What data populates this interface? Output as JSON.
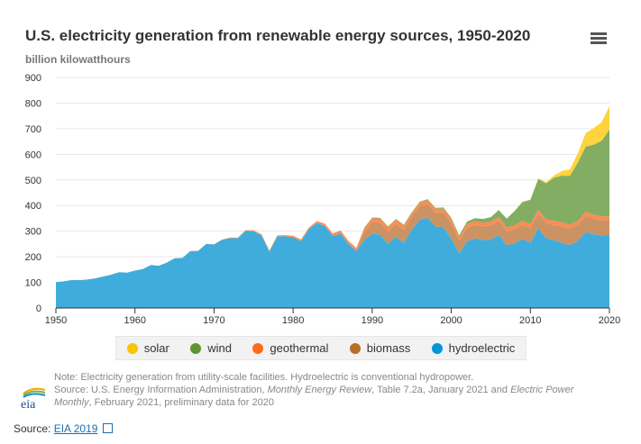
{
  "header": {
    "title": "U.S. electricity generation from renewable energy sources, 1950-2020",
    "subtitle": "billion kilowatthours"
  },
  "menu_icon": "hamburger-menu-icon",
  "chart_data": {
    "type": "area",
    "stacked": true,
    "title": "U.S. electricity generation from renewable energy sources, 1950-2020",
    "ylabel": "billion kilowatthours",
    "xlim": [
      1950,
      2020
    ],
    "ylim": [
      0,
      900
    ],
    "yticks": [
      0,
      100,
      200,
      300,
      400,
      500,
      600,
      700,
      800,
      900
    ],
    "xticks": [
      1950,
      1960,
      1970,
      1980,
      1990,
      2000,
      2010,
      2020
    ],
    "grid": true,
    "legend_position": "bottom",
    "x_start": 1950,
    "series": [
      {
        "name": "hydroelectric",
        "fill": "#40acdc",
        "color": "#0096d7",
        "values": [
          101,
          104,
          109,
          109,
          111,
          116,
          123,
          130,
          140,
          138,
          146,
          152,
          168,
          165,
          177,
          194,
          195,
          222,
          223,
          250,
          248,
          266,
          273,
          272,
          301,
          300,
          284,
          220,
          280,
          280,
          276,
          261,
          309,
          332,
          321,
          281,
          291,
          250,
          223,
          265,
          290,
          286,
          250,
          278,
          254,
          306,
          344,
          353,
          318,
          316,
          271,
          214,
          260,
          272,
          265,
          267,
          286,
          245,
          252,
          270,
          255,
          312,
          272,
          265,
          255,
          245,
          262,
          297,
          288,
          284,
          285
        ]
      },
      {
        "name": "biomass",
        "fill": "#cb9363",
        "color": "#b86e2a",
        "values": [
          0,
          0,
          0,
          0,
          0,
          0,
          0,
          0,
          0,
          0,
          0.1,
          0.1,
          0.1,
          0.1,
          0.1,
          0.1,
          0.1,
          0.1,
          0.1,
          0.1,
          0.5,
          0.5,
          0.5,
          0.5,
          0.5,
          0.5,
          0.5,
          0.5,
          0.5,
          0.5,
          1,
          1,
          1,
          1,
          1,
          1,
          1,
          1,
          1,
          32,
          45,
          47,
          49,
          50,
          52,
          51,
          53,
          54,
          55,
          57,
          61,
          49,
          53,
          53,
          54,
          55,
          55,
          55,
          56,
          55,
          57,
          57,
          58,
          60,
          64,
          64,
          63,
          63,
          61,
          58,
          56
        ]
      },
      {
        "name": "geothermal",
        "fill": "#fb8c55",
        "color": "#ff6b1a",
        "values": [
          0,
          0,
          0,
          0,
          0,
          0,
          0,
          0,
          0,
          0,
          0,
          0,
          0,
          0.2,
          0.2,
          0.2,
          0.3,
          0.3,
          0.5,
          0.6,
          0.5,
          0.5,
          1.5,
          2,
          2.5,
          3,
          3.6,
          3.6,
          3,
          3.9,
          5,
          5.7,
          4.8,
          6.1,
          7.7,
          9.3,
          10.3,
          10.8,
          10.3,
          14.6,
          15.4,
          16,
          16.1,
          16.8,
          15.5,
          13.4,
          14.3,
          14.7,
          14.8,
          14.8,
          14.1,
          13.7,
          14.5,
          14.4,
          14.8,
          14.7,
          14.6,
          14.6,
          14.8,
          15,
          15.2,
          15.3,
          15.6,
          15.8,
          15.9,
          15.9,
          15.8,
          15.9,
          15.9,
          15.5,
          17
        ]
      },
      {
        "name": "wind",
        "fill": "#82ad62",
        "color": "#5e9732",
        "values": [
          0,
          0,
          0,
          0,
          0,
          0,
          0,
          0,
          0,
          0,
          0,
          0,
          0,
          0,
          0,
          0,
          0,
          0,
          0,
          0,
          0,
          0,
          0,
          0,
          0,
          0,
          0,
          0,
          0,
          0,
          0,
          0,
          0,
          0,
          0,
          0,
          0,
          0,
          0,
          2,
          3,
          3,
          3,
          3,
          3.4,
          3.2,
          3.2,
          3.3,
          3,
          4.5,
          5.6,
          6.7,
          10,
          11,
          14,
          18,
          27,
          34,
          55,
          74,
          95,
          120,
          141,
          168,
          182,
          191,
          227,
          254,
          273,
          295,
          338
        ]
      },
      {
        "name": "solar",
        "fill": "#fdd43c",
        "color": "#f8c500",
        "values": [
          0,
          0,
          0,
          0,
          0,
          0,
          0,
          0,
          0,
          0,
          0,
          0,
          0,
          0,
          0,
          0,
          0,
          0,
          0,
          0,
          0,
          0,
          0,
          0,
          0,
          0,
          0,
          0,
          0,
          0,
          0,
          0,
          0,
          0,
          0,
          0,
          0,
          0,
          0,
          0,
          0.4,
          0.4,
          0.4,
          0.4,
          0.4,
          0.4,
          0.4,
          0.4,
          0.4,
          0.4,
          0.4,
          0.4,
          0.4,
          0.4,
          0.4,
          0.4,
          0.4,
          0.6,
          0.9,
          0.9,
          1.2,
          1.8,
          4.3,
          9,
          18,
          25,
          36,
          53,
          64,
          72,
          91
        ]
      }
    ]
  },
  "legend": [
    {
      "label": "solar",
      "color": "#f8c500"
    },
    {
      "label": "wind",
      "color": "#5e9732"
    },
    {
      "label": "geothermal",
      "color": "#ff6b1a"
    },
    {
      "label": "biomass",
      "color": "#b86e2a"
    },
    {
      "label": "hydroelectric",
      "color": "#0096d7"
    }
  ],
  "note": {
    "line1": "Note: Electricity generation from utility-scale facilities. Hydroelectric is conventional hydropower.",
    "src_a": "Source: U.S. Energy Information Administration, ",
    "src_b": "Monthly Energy Review",
    "src_c": ", Table 7.2a, January 2021 and ",
    "src_d": "Electric Power Monthly",
    "src_e": ", February 2021, preliminary data for 2020",
    "logo_text": "eia"
  },
  "source": {
    "label": "Source: ",
    "link": "EIA 2019",
    "link_icon": "external-link-icon"
  }
}
